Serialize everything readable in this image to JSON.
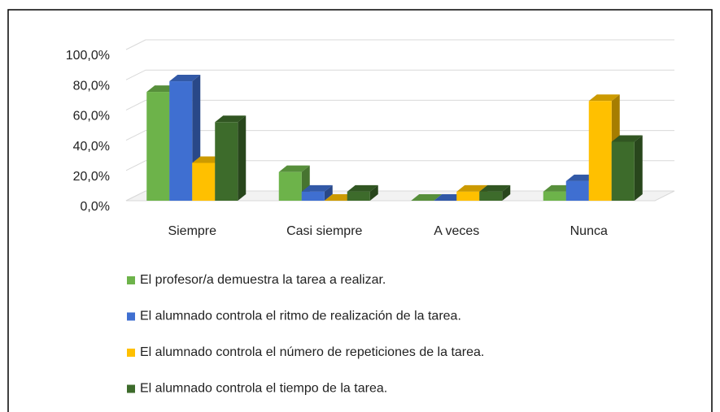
{
  "chart_data": {
    "type": "bar3d",
    "categories": [
      "Siempre",
      "Casi siempre",
      "A veces",
      "Nunca"
    ],
    "series": [
      {
        "name": "El profesor/a demuestra la tarea a realizar.",
        "color": "#6db34a",
        "values": [
          72,
          19,
          0,
          6
        ]
      },
      {
        "name": "El alumnado controla el ritmo de realización de la tarea.",
        "color": "#3f6fd1",
        "values": [
          79,
          6,
          0,
          13
        ]
      },
      {
        "name": "El alumnado controla el número de repeticiones de la tarea.",
        "color": "#ffc000",
        "values": [
          25,
          0,
          6,
          66
        ]
      },
      {
        "name": "El alumnado controla el tiempo de la tarea.",
        "color": "#3d6b2b",
        "values": [
          52,
          6,
          6,
          39
        ]
      }
    ],
    "ylim": [
      0,
      100
    ],
    "yticks": [
      {
        "value": 0,
        "label": "0,0%"
      },
      {
        "value": 20,
        "label": "20,0%"
      },
      {
        "value": 40,
        "label": "40,0%"
      },
      {
        "value": 60,
        "label": "60,0%"
      },
      {
        "value": 80,
        "label": "80,0%"
      },
      {
        "value": 100,
        "label": "100,0%"
      }
    ],
    "grid": true,
    "legend": "bottom"
  }
}
